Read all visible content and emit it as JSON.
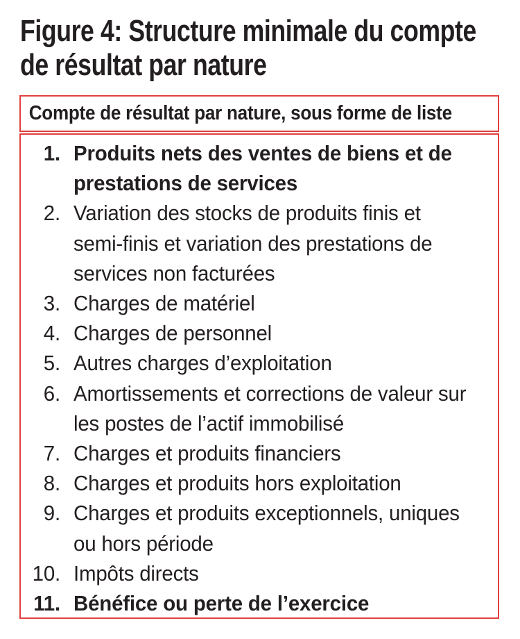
{
  "figure": {
    "title": "Figure 4: Structure minimale du compte\nde résultat par nature"
  },
  "table": {
    "header": "Compte de résultat par nature, sous forme de liste",
    "items": [
      {
        "num": "1.",
        "text": "Produits nets des ventes de biens et de\nprestations de services",
        "bold": true
      },
      {
        "num": "2.",
        "text": "Variation des stocks de produits finis et\nsemi-finis et variation des prestations de\nservices non facturées",
        "bold": false
      },
      {
        "num": "3.",
        "text": "Charges de matériel",
        "bold": false
      },
      {
        "num": "4.",
        "text": "Charges de personnel",
        "bold": false
      },
      {
        "num": "5.",
        "text": "Autres charges d’exploitation",
        "bold": false
      },
      {
        "num": "6.",
        "text": "Amortissements et corrections de valeur sur\nles postes de l’actif immobilisé",
        "bold": false
      },
      {
        "num": "7.",
        "text": "Charges et produits financiers",
        "bold": false
      },
      {
        "num": "8.",
        "text": "Charges et produits hors exploitation",
        "bold": false
      },
      {
        "num": "9.",
        "text": "Charges et produits exceptionnels, uniques\nou hors période",
        "bold": false
      },
      {
        "num": "10.",
        "text": "Impôts directs",
        "bold": false
      },
      {
        "num": "11.",
        "text": "Bénéfice ou perte de l’exercice",
        "bold": true
      }
    ]
  },
  "colors": {
    "accent_red": "#e04040",
    "text": "#231f20",
    "background": "#ffffff"
  }
}
